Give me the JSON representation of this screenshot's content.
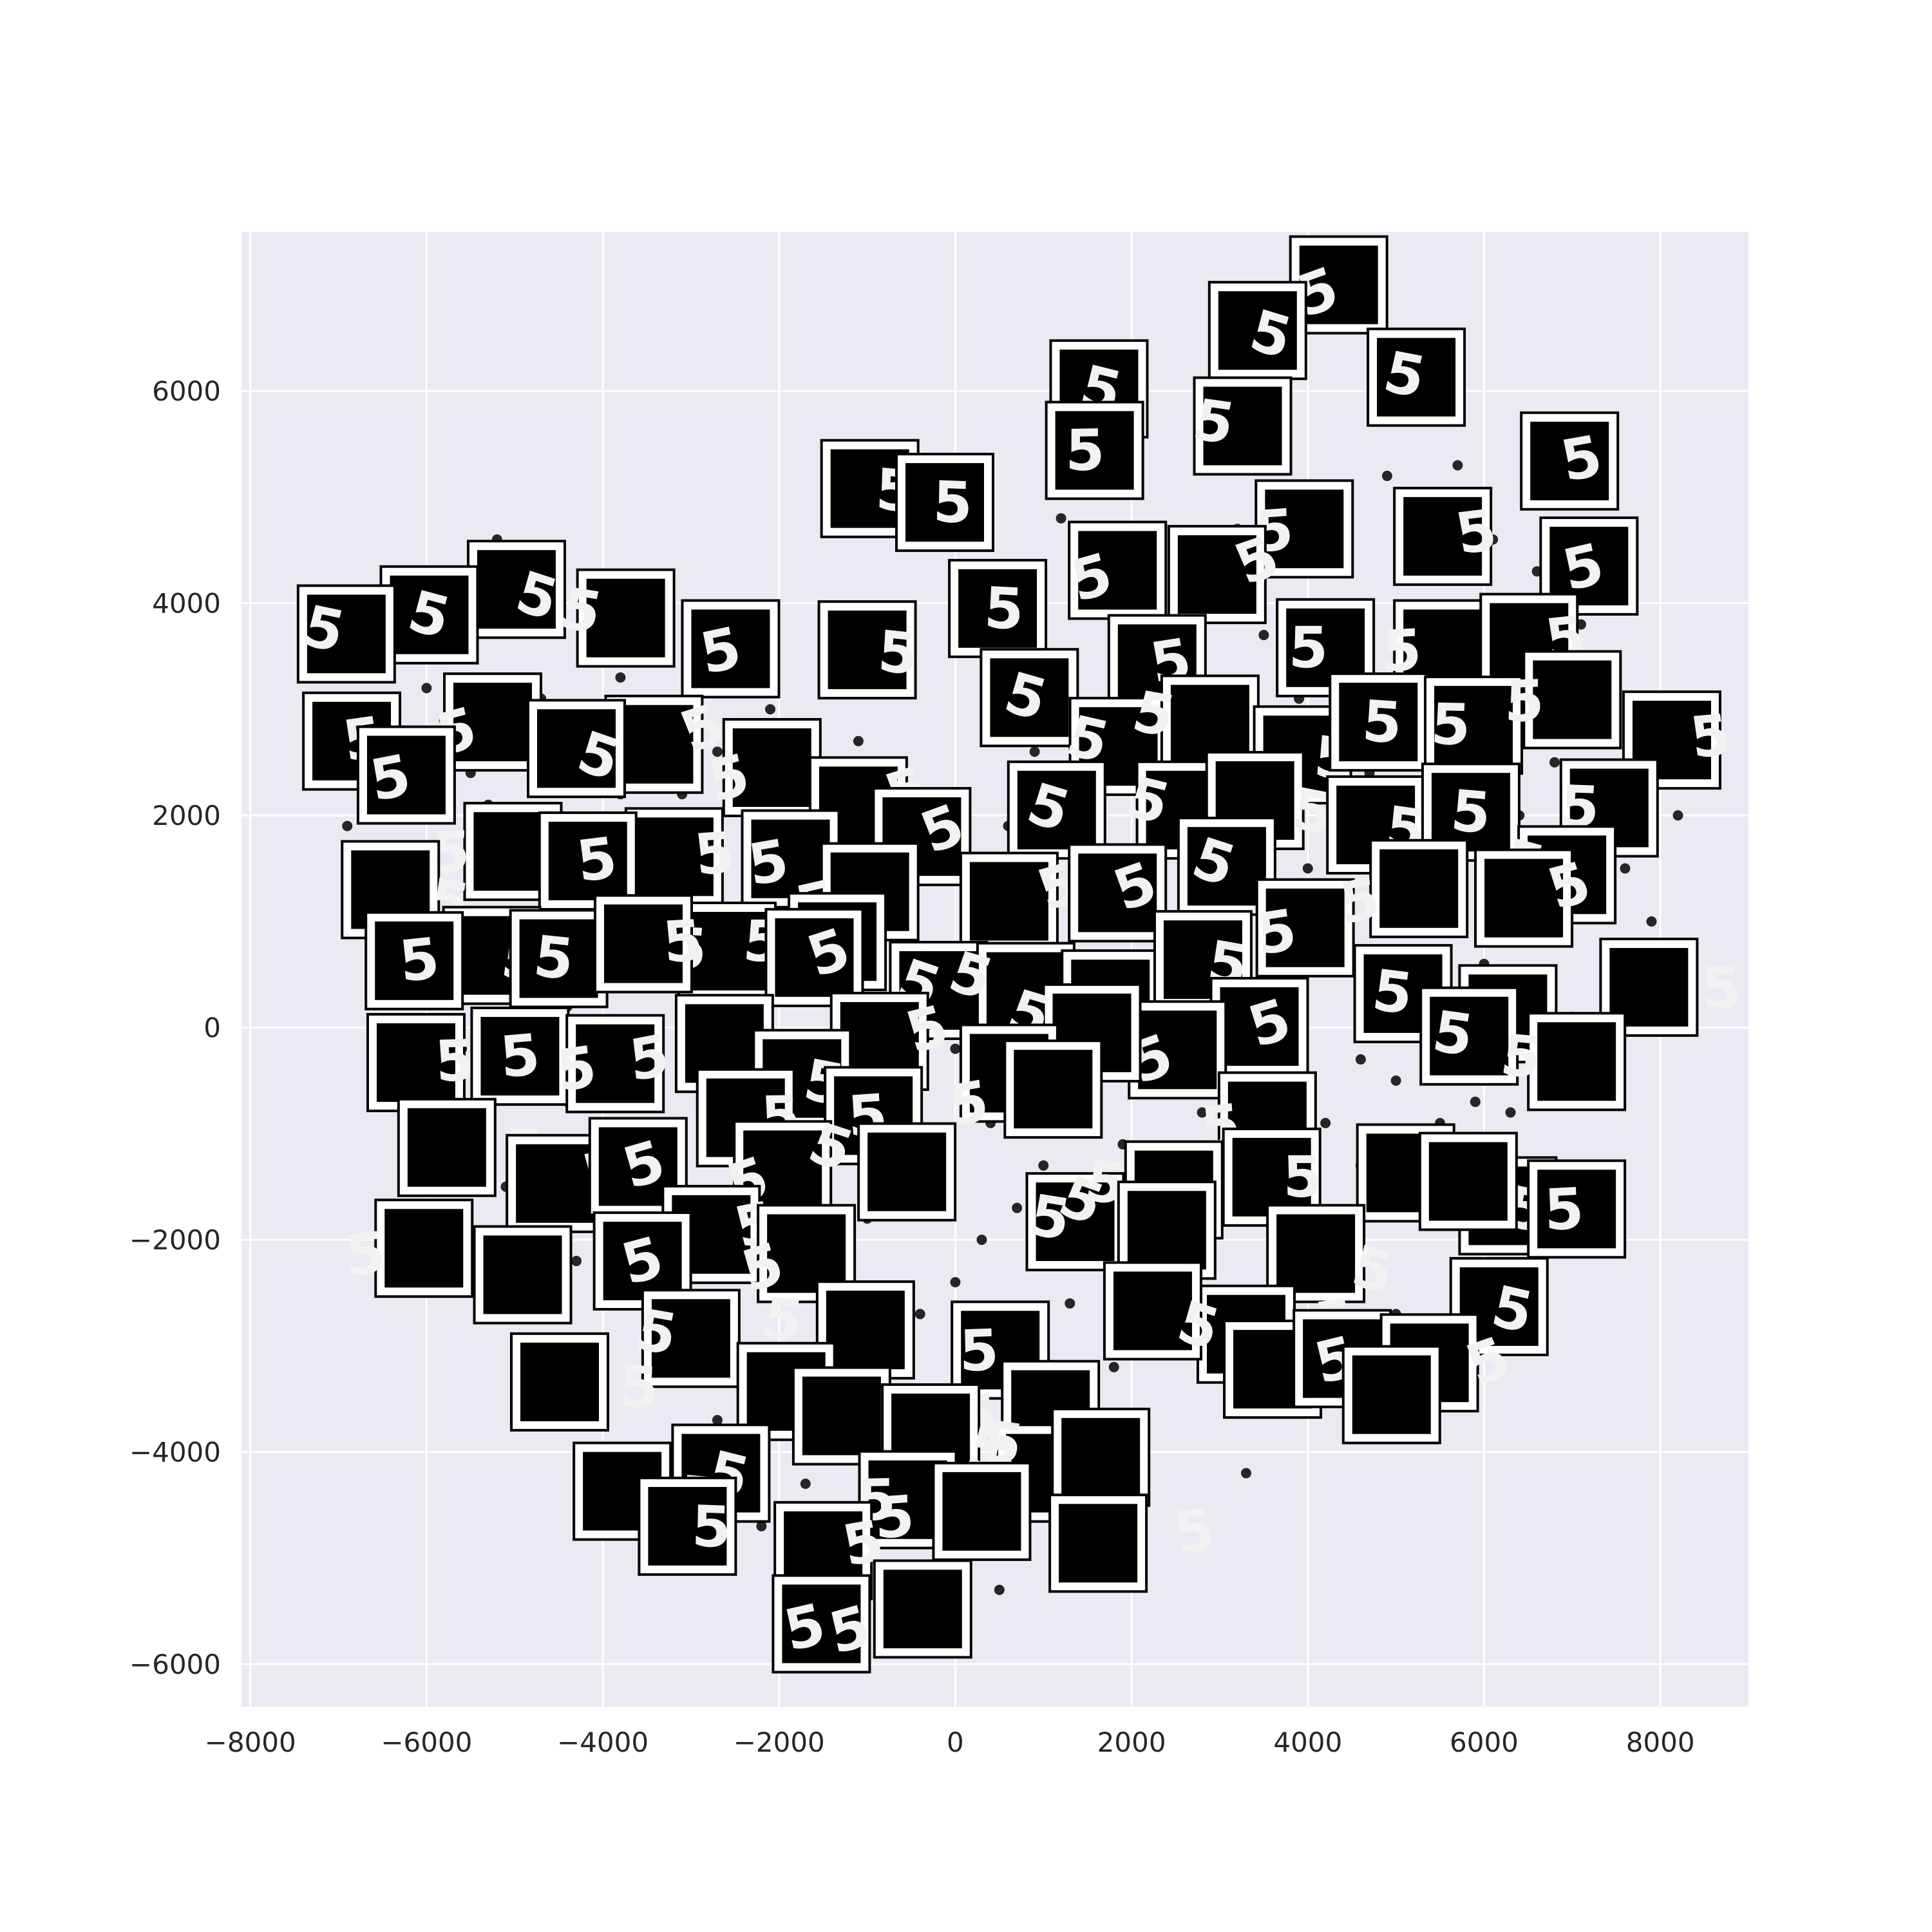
{
  "chart_data": {
    "type": "scatter",
    "title": "",
    "xlabel": "",
    "ylabel": "",
    "xlim": [
      -8100,
      9000
    ],
    "ylim": [
      -6400,
      7500
    ],
    "xticks": [
      -8000,
      -6000,
      -4000,
      -2000,
      0,
      2000,
      4000,
      6000,
      8000
    ],
    "yticks": [
      -6000,
      -4000,
      -2000,
      0,
      2000,
      4000,
      6000
    ],
    "xtick_labels": [
      "−8000",
      "−6000",
      "−4000",
      "−2000",
      "0",
      "2000",
      "4000",
      "6000",
      "8000"
    ],
    "ytick_labels": [
      "−6000",
      "−4000",
      "−2000",
      "0",
      "2000",
      "4000",
      "6000"
    ],
    "grid": true,
    "background_color": "#eaeaf2",
    "grid_color": "#ffffff",
    "point_color": "#262626",
    "thumbnail_frame_color": "#ffffff",
    "thumbnail_background_color": "#000000",
    "thumbnail_glyph": "5",
    "points": [
      [
        -6900,
        1900
      ],
      [
        -6300,
        2700
      ],
      [
        -6000,
        3200
      ],
      [
        -5800,
        2900
      ],
      [
        -5500,
        2400
      ],
      [
        -5200,
        4600
      ],
      [
        -4700,
        3100
      ],
      [
        -4200,
        2800
      ],
      [
        -3800,
        3300
      ],
      [
        -3300,
        4100
      ],
      [
        -2700,
        2600
      ],
      [
        -2100,
        3000
      ],
      [
        -1100,
        2700
      ],
      [
        -600,
        2300
      ],
      [
        -300,
        1900
      ],
      [
        -200,
        1500
      ],
      [
        500,
        800
      ],
      [
        600,
        1900
      ],
      [
        900,
        2600
      ],
      [
        1200,
        3300
      ],
      [
        1600,
        4000
      ],
      [
        2300,
        4100
      ],
      [
        2600,
        3500
      ],
      [
        3000,
        3100
      ],
      [
        3500,
        3700
      ],
      [
        3900,
        3100
      ],
      [
        4100,
        2700
      ],
      [
        4700,
        2400
      ],
      [
        5200,
        2800
      ],
      [
        5600,
        2600
      ],
      [
        6000,
        2300
      ],
      [
        6400,
        2000
      ],
      [
        6800,
        2500
      ],
      [
        7300,
        2000
      ],
      [
        7800,
        2200
      ],
      [
        8200,
        2000
      ],
      [
        7900,
        1000
      ],
      [
        7400,
        500
      ],
      [
        7000,
        100
      ],
      [
        6500,
        -100
      ],
      [
        5900,
        -700
      ],
      [
        5500,
        -900
      ],
      [
        5000,
        -500
      ],
      [
        4600,
        -300
      ],
      [
        4200,
        -900
      ],
      [
        3800,
        -700
      ],
      [
        3300,
        -1000
      ],
      [
        2800,
        -800
      ],
      [
        2500,
        -1300
      ],
      [
        1900,
        -1100
      ],
      [
        1500,
        -900
      ],
      [
        1000,
        -1300
      ],
      [
        700,
        -1700
      ],
      [
        300,
        -2000
      ],
      [
        0,
        -2400
      ],
      [
        -400,
        -2700
      ],
      [
        -700,
        -3200
      ],
      [
        -1000,
        -3500
      ],
      [
        -1300,
        -3900
      ],
      [
        -1700,
        -4300
      ],
      [
        -2200,
        -4200
      ],
      [
        -2700,
        -3700
      ],
      [
        -3100,
        -3300
      ],
      [
        -3500,
        -2900
      ],
      [
        -3900,
        -2600
      ],
      [
        -4300,
        -2200
      ],
      [
        -4700,
        -1800
      ],
      [
        -5100,
        -1500
      ],
      [
        -5500,
        -1200
      ],
      [
        -5900,
        -900
      ],
      [
        -6200,
        -300
      ],
      [
        -6400,
        500
      ],
      [
        -6600,
        1300
      ],
      [
        -6000,
        600
      ],
      [
        -5600,
        -200
      ],
      [
        -5200,
        800
      ],
      [
        -4800,
        1300
      ],
      [
        -4400,
        200
      ],
      [
        -4000,
        -700
      ],
      [
        -3600,
        600
      ],
      [
        -3200,
        1500
      ],
      [
        -2800,
        400
      ],
      [
        -2400,
        -400
      ],
      [
        -2000,
        800
      ],
      [
        -1600,
        -1300
      ],
      [
        -1200,
        200
      ],
      [
        -800,
        -900
      ],
      [
        -400,
        700
      ],
      [
        0,
        -200
      ],
      [
        400,
        -900
      ],
      [
        800,
        300
      ],
      [
        1200,
        -300
      ],
      [
        1600,
        600
      ],
      [
        2000,
        -400
      ],
      [
        2400,
        300
      ],
      [
        2800,
        1200
      ],
      [
        3200,
        -200
      ],
      [
        3600,
        600
      ],
      [
        4000,
        1500
      ],
      [
        4400,
        900
      ],
      [
        4800,
        200
      ],
      [
        5200,
        1100
      ],
      [
        5600,
        1800
      ],
      [
        6000,
        600
      ],
      [
        6400,
        1400
      ],
      [
        6800,
        -600
      ],
      [
        7200,
        -300
      ],
      [
        3300,
        -4200
      ],
      [
        2100,
        -4900
      ],
      [
        500,
        -5300
      ],
      [
        -1600,
        -5400
      ],
      [
        -2200,
        -4700
      ],
      [
        -900,
        -4600
      ],
      [
        900,
        -4000
      ],
      [
        1800,
        -3200
      ],
      [
        2600,
        -2700
      ],
      [
        3400,
        -3000
      ],
      [
        4200,
        -2500
      ],
      [
        5000,
        -2700
      ],
      [
        5600,
        -3300
      ],
      [
        6100,
        -2400
      ],
      [
        6800,
        -1500
      ],
      [
        4900,
        5200
      ],
      [
        5400,
        4900
      ],
      [
        5700,
        5300
      ],
      [
        6100,
        4600
      ],
      [
        6600,
        4300
      ],
      [
        7100,
        3800
      ],
      [
        7400,
        3300
      ],
      [
        4400,
        4500
      ],
      [
        3700,
        5100
      ],
      [
        3200,
        4700
      ],
      [
        2800,
        5800
      ],
      [
        1900,
        5100
      ],
      [
        1200,
        4800
      ],
      [
        -900,
        4900
      ],
      [
        -1400,
        3700
      ],
      [
        -3100,
        2200
      ],
      [
        -3700,
        1800
      ],
      [
        -4500,
        1600
      ],
      [
        -5300,
        2100
      ],
      [
        -5800,
        3500
      ],
      [
        -6400,
        3900
      ],
      [
        -4100,
        4000
      ],
      [
        -2300,
        1300
      ],
      [
        -1800,
        -200
      ],
      [
        -2600,
        -1900
      ],
      [
        -1900,
        -2300
      ],
      [
        -1400,
        -2900
      ],
      [
        -2300,
        -3100
      ],
      [
        -3000,
        -2300
      ],
      [
        -3700,
        -1500
      ],
      [
        -4400,
        -700
      ],
      [
        -5000,
        300
      ],
      [
        -5500,
        1500
      ],
      [
        -4900,
        2700
      ],
      [
        -3800,
        2200
      ],
      [
        -2900,
        1000
      ],
      [
        -2000,
        -1100
      ],
      [
        -1000,
        -1800
      ],
      [
        100,
        -2800
      ],
      [
        1300,
        -2600
      ],
      [
        2200,
        -2000
      ],
      [
        3100,
        -1600
      ],
      [
        3900,
        -1800
      ],
      [
        4600,
        -1300
      ],
      [
        5300,
        -1700
      ],
      [
        5900,
        -1300
      ],
      [
        6300,
        -800
      ],
      [
        7600,
        1500
      ]
    ],
    "images": [
      [
        4350,
        7000
      ],
      [
        3430,
        6570
      ],
      [
        1630,
        6020
      ],
      [
        5230,
        6130
      ],
      [
        3260,
        5670
      ],
      [
        -970,
        5080
      ],
      [
        -120,
        4950
      ],
      [
        1580,
        5440
      ],
      [
        3960,
        4700
      ],
      [
        5530,
        4630
      ],
      [
        6970,
        5340
      ],
      [
        7190,
        4350
      ],
      [
        1840,
        4310
      ],
      [
        2970,
        4270
      ],
      [
        -4980,
        4130
      ],
      [
        -5970,
        3890
      ],
      [
        -6910,
        3710
      ],
      [
        -3740,
        3860
      ],
      [
        -1000,
        3560
      ],
      [
        480,
        3950
      ],
      [
        4200,
        3580
      ],
      [
        5530,
        3570
      ],
      [
        6510,
        3630
      ],
      [
        2290,
        3430
      ],
      [
        -2550,
        3570
      ],
      [
        -5250,
        2880
      ],
      [
        -3420,
        2670
      ],
      [
        -4300,
        2630
      ],
      [
        840,
        3110
      ],
      [
        1850,
        2650
      ],
      [
        2890,
        2860
      ],
      [
        3940,
        2570
      ],
      [
        4800,
        2880
      ],
      [
        5880,
        2850
      ],
      [
        7000,
        3090
      ],
      [
        8130,
        2710
      ],
      [
        -6850,
        2700
      ],
      [
        -6230,
        2380
      ],
      [
        -2080,
        2450
      ],
      [
        -1100,
        2090
      ],
      [
        -380,
        1800
      ],
      [
        1150,
        2050
      ],
      [
        2610,
        2050
      ],
      [
        3400,
        2140
      ],
      [
        4770,
        1910
      ],
      [
        5850,
        2030
      ],
      [
        7420,
        2070
      ],
      [
        -5020,
        1660
      ],
      [
        -3190,
        1610
      ],
      [
        -4170,
        1570
      ],
      [
        -1870,
        1590
      ],
      [
        -970,
        1280
      ],
      [
        610,
        1190
      ],
      [
        1840,
        1270
      ],
      [
        3080,
        1520
      ],
      [
        6940,
        1440
      ],
      [
        -6410,
        1300
      ],
      [
        -5260,
        680
      ],
      [
        -4500,
        650
      ],
      [
        -2590,
        720
      ],
      [
        -1340,
        810
      ],
      [
        -3540,
        790
      ],
      [
        -6140,
        630
      ],
      [
        3970,
        940
      ],
      [
        5260,
        1310
      ],
      [
        6450,
        1220
      ],
      [
        -1600,
        660
      ],
      [
        -190,
        350
      ],
      [
        800,
        340
      ],
      [
        1760,
        270
      ],
      [
        2810,
        640
      ],
      [
        5080,
        320
      ],
      [
        6270,
        130
      ],
      [
        7870,
        380
      ],
      [
        -6120,
        -330
      ],
      [
        -4940,
        -270
      ],
      [
        -3860,
        -340
      ],
      [
        -2620,
        -150
      ],
      [
        -860,
        -130
      ],
      [
        3450,
        10
      ],
      [
        2520,
        -210
      ],
      [
        1550,
        -50
      ],
      [
        610,
        -430
      ],
      [
        -1740,
        -480
      ],
      [
        5830,
        -80
      ],
      [
        7050,
        -320
      ],
      [
        -5770,
        -1130
      ],
      [
        -2380,
        -850
      ],
      [
        -930,
        -830
      ],
      [
        3540,
        -880
      ],
      [
        1110,
        -580
      ],
      [
        -4540,
        -1470
      ],
      [
        -3600,
        -1310
      ],
      [
        -1960,
        -1340
      ],
      [
        -550,
        -1360
      ],
      [
        5110,
        -1370
      ],
      [
        6270,
        -1680
      ],
      [
        1360,
        -1830
      ],
      [
        2480,
        -1530
      ],
      [
        5820,
        -1450
      ],
      [
        3590,
        -1410
      ],
      [
        7050,
        -1710
      ],
      [
        -6030,
        -2080
      ],
      [
        -4910,
        -2330
      ],
      [
        -2770,
        -1950
      ],
      [
        -3550,
        -2200
      ],
      [
        -1690,
        -2130
      ],
      [
        2400,
        -1910
      ],
      [
        4090,
        -2130
      ],
      [
        6170,
        -2630
      ],
      [
        -3000,
        -2930
      ],
      [
        -1020,
        -2850
      ],
      [
        -4490,
        -3340
      ],
      [
        -1920,
        -3430
      ],
      [
        510,
        -3040
      ],
      [
        1080,
        -3600
      ],
      [
        3300,
        -2890
      ],
      [
        3600,
        -3220
      ],
      [
        4390,
        -3120
      ],
      [
        5380,
        -3160
      ],
      [
        -1290,
        -3660
      ],
      [
        -280,
        -3820
      ],
      [
        -2660,
        -4200
      ],
      [
        1020,
        -4200
      ],
      [
        1650,
        -4050
      ],
      [
        -3780,
        -4370
      ],
      [
        -3040,
        -4700
      ],
      [
        -540,
        -4450
      ],
      [
        300,
        -4560
      ],
      [
        1620,
        -4860
      ],
      [
        -1500,
        -4930
      ],
      [
        -1520,
        -5620
      ],
      [
        -370,
        -5480
      ],
      [
        4950,
        -3460
      ],
      [
        2240,
        -2670
      ]
    ]
  }
}
